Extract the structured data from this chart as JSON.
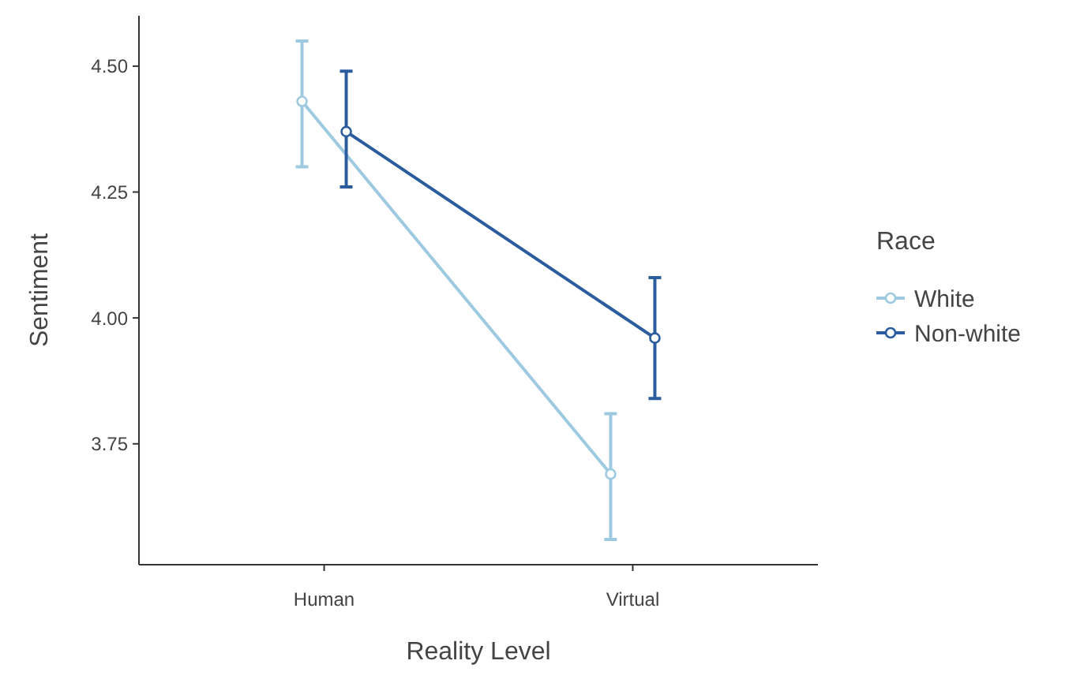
{
  "chart_data": {
    "type": "line",
    "xlabel": "Reality Level",
    "ylabel": "Sentiment",
    "legend_title": "Race",
    "categories": [
      "Human",
      "Virtual"
    ],
    "ylim": [
      3.51,
      4.6
    ],
    "yticks": [
      {
        "value": 3.75,
        "label": "3.75"
      },
      {
        "value": 4,
        "label": "4.00"
      },
      {
        "value": 4.25,
        "label": "4.25"
      },
      {
        "value": 4.5,
        "label": "4.50"
      }
    ],
    "grid": false,
    "legend": "right",
    "marker": "circle",
    "line_style": "solid",
    "series": [
      {
        "name": "White",
        "color": "#9ecae1",
        "values": [
          4.43,
          3.69
        ],
        "errors": [
          [
            4.3,
            4.55
          ],
          [
            3.56,
            3.81
          ]
        ]
      },
      {
        "name": "Non-white",
        "color": "#2b5c9e",
        "values": [
          4.37,
          3.96
        ],
        "errors": [
          [
            4.26,
            4.49
          ],
          [
            3.84,
            4.08
          ]
        ]
      }
    ]
  }
}
